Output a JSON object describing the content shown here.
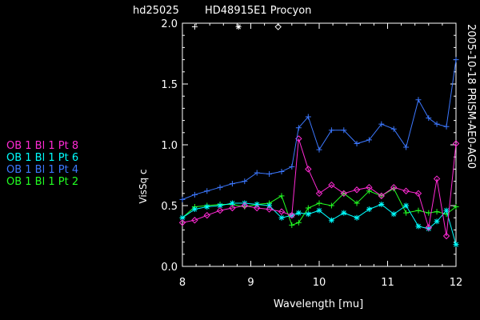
{
  "chart_data": {
    "type": "line",
    "title_left": "hd25025",
    "title_right": "HD48915E1 Procyon",
    "side_label": "2005-10-18 PRISM-AE0-AG0",
    "xlabel": "Wavelength [mu]",
    "ylabel": "VisSq c",
    "xlim": [
      8,
      12
    ],
    "ylim": [
      0,
      2.0
    ],
    "x_ticks": [
      8,
      9,
      10,
      11,
      12
    ],
    "y_ticks": [
      0.0,
      0.5,
      1.0,
      1.5,
      2.0
    ],
    "x_tick_labels": [
      "8",
      "9",
      "10",
      "11",
      "12"
    ],
    "y_tick_labels": [
      "0.0",
      "0.5",
      "1.0",
      "1.5",
      "2.0"
    ],
    "symbol_key": [
      {
        "marker": "plus",
        "x": 8.18,
        "y": 1.97
      },
      {
        "marker": "asterisk",
        "x": 8.82,
        "y": 1.97
      },
      {
        "marker": "diamond",
        "x": 9.4,
        "y": 1.97
      }
    ],
    "series": [
      {
        "name": "OB 1 Bl 1 Pt 8",
        "color": "#ff2ad4",
        "marker": "diamond",
        "x": [
          8.0,
          8.18,
          8.36,
          8.55,
          8.73,
          8.91,
          9.09,
          9.27,
          9.45,
          9.6,
          9.7,
          9.84,
          10.0,
          10.18,
          10.36,
          10.55,
          10.73,
          10.91,
          11.09,
          11.27,
          11.45,
          11.6,
          11.72,
          11.86,
          12.0
        ],
        "y": [
          0.36,
          0.38,
          0.42,
          0.46,
          0.48,
          0.5,
          0.48,
          0.47,
          0.45,
          0.42,
          1.05,
          0.8,
          0.6,
          0.67,
          0.6,
          0.63,
          0.65,
          0.58,
          0.65,
          0.62,
          0.6,
          0.32,
          0.72,
          0.25,
          1.01
        ]
      },
      {
        "name": "OB 1 Bl 1 Pt 6",
        "color": "#00ffff",
        "marker": "asterisk",
        "x": [
          8.0,
          8.18,
          8.36,
          8.55,
          8.73,
          8.91,
          9.09,
          9.27,
          9.45,
          9.6,
          9.7,
          9.84,
          10.0,
          10.18,
          10.36,
          10.55,
          10.73,
          10.91,
          11.09,
          11.27,
          11.45,
          11.6,
          11.72,
          11.86,
          12.0
        ],
        "y": [
          0.4,
          0.47,
          0.49,
          0.5,
          0.52,
          0.52,
          0.51,
          0.5,
          0.4,
          0.42,
          0.44,
          0.43,
          0.46,
          0.38,
          0.44,
          0.4,
          0.47,
          0.51,
          0.43,
          0.5,
          0.33,
          0.31,
          0.37,
          0.46,
          0.18
        ]
      },
      {
        "name": "OB 1 Bl 1 Pt 4",
        "color": "#3c78ff",
        "marker": "plus",
        "x": [
          8.0,
          8.18,
          8.36,
          8.55,
          8.73,
          8.91,
          9.09,
          9.27,
          9.45,
          9.6,
          9.7,
          9.84,
          10.0,
          10.18,
          10.36,
          10.55,
          10.73,
          10.91,
          11.09,
          11.27,
          11.45,
          11.6,
          11.72,
          11.86,
          12.0
        ],
        "y": [
          0.55,
          0.59,
          0.62,
          0.65,
          0.68,
          0.7,
          0.77,
          0.76,
          0.78,
          0.82,
          1.14,
          1.23,
          0.96,
          1.12,
          1.12,
          1.01,
          1.04,
          1.17,
          1.13,
          0.98,
          1.37,
          1.22,
          1.17,
          1.15,
          1.7
        ]
      },
      {
        "name": "OB 1 Bl 1 Pt 2",
        "color": "#22ff22",
        "marker": "plus",
        "x": [
          8.0,
          8.18,
          8.36,
          8.55,
          8.73,
          8.91,
          9.09,
          9.27,
          9.45,
          9.6,
          9.7,
          9.84,
          10.0,
          10.18,
          10.36,
          10.55,
          10.73,
          10.91,
          11.09,
          11.27,
          11.45,
          11.6,
          11.72,
          11.86,
          12.0
        ],
        "y": [
          0.4,
          0.49,
          0.5,
          0.51,
          0.51,
          0.49,
          0.51,
          0.52,
          0.58,
          0.34,
          0.36,
          0.48,
          0.52,
          0.5,
          0.6,
          0.52,
          0.62,
          0.58,
          0.64,
          0.44,
          0.46,
          0.44,
          0.45,
          0.43,
          0.49
        ]
      }
    ]
  }
}
